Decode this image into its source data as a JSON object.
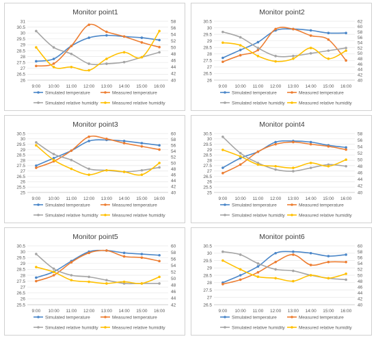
{
  "chart_data": [
    {
      "type": "line",
      "title": "Monitor point1",
      "categories": [
        "9:00",
        "10:00",
        "11:00",
        "12:00",
        "13:00",
        "14:00",
        "15:00",
        "16:00"
      ],
      "y_left_ticks": [
        "26",
        "26.5",
        "27",
        "27.5",
        "28",
        "28.5",
        "29",
        "29.5",
        "30",
        "30.5",
        "31"
      ],
      "y_right_ticks": [
        "40",
        "42",
        "44",
        "46",
        "48",
        "50",
        "52",
        "54",
        "56",
        "58"
      ],
      "ylim_left": [
        26,
        31
      ],
      "ylim_right": [
        40,
        58
      ],
      "series": [
        {
          "name": "Simulated temperature",
          "axis": "left",
          "color": "#4a86c8",
          "values": [
            27.6,
            27.8,
            28.9,
            29.6,
            29.8,
            29.7,
            29.6,
            29.4
          ]
        },
        {
          "name": "Measured temperature",
          "axis": "left",
          "color": "#ed7d31",
          "values": [
            27.2,
            27.4,
            28.9,
            30.7,
            30.1,
            29.7,
            29.2,
            28.8
          ]
        },
        {
          "name": "Simulated relative humidity",
          "axis": "right",
          "color": "#a5a5a5",
          "values": [
            55,
            50,
            48,
            45,
            45,
            45.5,
            47,
            48.5
          ]
        },
        {
          "name": "Measured relative humidity",
          "axis": "right",
          "color": "#ffc000",
          "values": [
            50,
            44,
            44,
            43,
            46.5,
            48.5,
            47,
            55
          ]
        }
      ]
    },
    {
      "type": "line",
      "title": "Monitor point2",
      "categories": [
        "9:00",
        "10:00",
        "11:00",
        "12:00",
        "13:00",
        "14:00",
        "15:00",
        "16:00"
      ],
      "y_left_ticks": [
        "26",
        "26.5",
        "27",
        "27.5",
        "28",
        "28.5",
        "29",
        "29.5",
        "30",
        "30.5"
      ],
      "y_right_ticks": [
        "40",
        "42",
        "44",
        "46",
        "48",
        "50",
        "52",
        "54",
        "56",
        "58",
        "60",
        "62"
      ],
      "ylim_left": [
        26,
        30.5
      ],
      "ylim_right": [
        40,
        62
      ],
      "series": [
        {
          "name": "Simulated temperature",
          "axis": "left",
          "color": "#4a86c8",
          "values": [
            27.7,
            28.3,
            28.9,
            29.8,
            29.9,
            29.8,
            29.6,
            29.6
          ]
        },
        {
          "name": "Measured temperature",
          "axis": "left",
          "color": "#ed7d31",
          "values": [
            27.4,
            27.9,
            28.3,
            29.9,
            29.9,
            29.4,
            29.1,
            27.5
          ]
        },
        {
          "name": "Simulated relative humidity",
          "axis": "right",
          "color": "#a5a5a5",
          "values": [
            58,
            56,
            52,
            49,
            49,
            50,
            51,
            52
          ]
        },
        {
          "name": "Measured relative humidity",
          "axis": "right",
          "color": "#ffc000",
          "values": [
            54,
            53,
            49,
            47,
            48,
            52,
            48,
            51
          ]
        }
      ]
    },
    {
      "type": "line",
      "title": "Monitor point3",
      "categories": [
        "9:00",
        "10:00",
        "11:00",
        "12:00",
        "13:00",
        "14:00",
        "15:00",
        "16:00"
      ],
      "y_left_ticks": [
        "25",
        "25.5",
        "26",
        "26.5",
        "27",
        "27.5",
        "28",
        "28.5",
        "29",
        "29.5",
        "30",
        "30.5"
      ],
      "y_right_ticks": [
        "40",
        "42",
        "44",
        "46",
        "48",
        "50",
        "52",
        "54",
        "56",
        "58",
        "60"
      ],
      "ylim_left": [
        25,
        30.5
      ],
      "ylim_right": [
        40,
        60
      ],
      "series": [
        {
          "name": "Simulated temperature",
          "axis": "left",
          "color": "#4a86c8",
          "values": [
            27.5,
            28.2,
            28.9,
            29.8,
            29.9,
            29.8,
            29.6,
            29.4
          ]
        },
        {
          "name": "Measured temperature",
          "axis": "left",
          "color": "#ed7d31",
          "values": [
            27.3,
            27.9,
            28.9,
            30.2,
            30.0,
            29.6,
            29.3,
            29.0
          ]
        },
        {
          "name": "Simulated relative humidity",
          "axis": "right",
          "color": "#a5a5a5",
          "values": [
            57,
            53,
            51,
            48,
            47.5,
            47,
            47.5,
            48.5
          ]
        },
        {
          "name": "Measured relative humidity",
          "axis": "right",
          "color": "#ffc000",
          "values": [
            56,
            51,
            48,
            46,
            47.5,
            47,
            46,
            50
          ]
        }
      ]
    },
    {
      "type": "line",
      "title": "Monitor point4",
      "categories": [
        "9:00",
        "10:00",
        "11:00",
        "12:00",
        "13:00",
        "14:00",
        "15:00",
        "16:00"
      ],
      "y_left_ticks": [
        "25",
        "25.5",
        "26",
        "26.5",
        "27",
        "27.5",
        "28",
        "28.5",
        "29",
        "29.5",
        "30",
        "30.5"
      ],
      "y_right_ticks": [
        "40",
        "42",
        "44",
        "46",
        "48",
        "50",
        "52",
        "54",
        "56",
        "58"
      ],
      "ylim_left": [
        25,
        30.5
      ],
      "ylim_right": [
        40,
        58
      ],
      "series": [
        {
          "name": "Simulated temperature",
          "axis": "left",
          "color": "#4a86c8",
          "values": [
            27.3,
            28.2,
            28.8,
            29.7,
            29.8,
            29.7,
            29.4,
            29.2
          ]
        },
        {
          "name": "Measured temperature",
          "axis": "left",
          "color": "#ed7d31",
          "values": [
            26.8,
            27.6,
            28.8,
            29.5,
            29.7,
            29.5,
            29.3,
            29.0
          ]
        },
        {
          "name": "Simulated relative humidity",
          "axis": "right",
          "color": "#a5a5a5",
          "values": [
            57,
            52,
            49,
            47,
            46.5,
            47.5,
            48.5,
            48
          ]
        },
        {
          "name": "Measured relative humidity",
          "axis": "right",
          "color": "#ffc000",
          "values": [
            53,
            51,
            48.5,
            48,
            47.5,
            49,
            48,
            50
          ]
        }
      ]
    },
    {
      "type": "line",
      "title": "Monitor point5",
      "categories": [
        "9:00",
        "10:00",
        "11:00",
        "12:00",
        "13:00",
        "14:00",
        "15:00",
        "16:00"
      ],
      "y_left_ticks": [
        "25.5",
        "26",
        "26.5",
        "27",
        "27.5",
        "28",
        "28.5",
        "29",
        "29.5",
        "30",
        "30.5"
      ],
      "y_right_ticks": [
        "42",
        "44",
        "46",
        "48",
        "50",
        "52",
        "54",
        "56",
        "58",
        "60"
      ],
      "ylim_left": [
        25.5,
        30.5
      ],
      "ylim_right": [
        42,
        60
      ],
      "series": [
        {
          "name": "Simulated temperature",
          "axis": "left",
          "color": "#4a86c8",
          "values": [
            27.8,
            28.3,
            29.2,
            30.0,
            30.1,
            29.9,
            29.8,
            29.7
          ]
        },
        {
          "name": "Measured temperature",
          "axis": "left",
          "color": "#ed7d31",
          "values": [
            27.5,
            28.0,
            29.1,
            29.9,
            30.1,
            29.6,
            29.5,
            29.2
          ]
        },
        {
          "name": "Simulated relative humidity",
          "axis": "right",
          "color": "#a5a5a5",
          "values": [
            57.5,
            53,
            51,
            50.5,
            49.5,
            48.5,
            48.5,
            48.5
          ]
        },
        {
          "name": "Measured relative humidity",
          "axis": "right",
          "color": "#ffc000",
          "values": [
            53.5,
            52,
            49.5,
            49,
            48.5,
            49,
            48.5,
            50.5
          ]
        }
      ]
    },
    {
      "type": "line",
      "title": "Monitor point6",
      "categories": [
        "9:00",
        "10:00",
        "11:00",
        "12:00",
        "13:00",
        "14:00",
        "15:00",
        "16:00"
      ],
      "y_left_ticks": [
        "26.5",
        "27",
        "27.5",
        "28",
        "28.5",
        "29",
        "29.5",
        "30",
        "30.5"
      ],
      "y_right_ticks": [
        "40",
        "42",
        "44",
        "46",
        "48",
        "50",
        "52",
        "54",
        "56",
        "58",
        "60"
      ],
      "ylim_left": [
        26.5,
        30.5
      ],
      "ylim_right": [
        40,
        60
      ],
      "series": [
        {
          "name": "Simulated temperature",
          "axis": "left",
          "color": "#4a86c8",
          "values": [
            28.0,
            28.5,
            29.1,
            30.0,
            30.1,
            30.0,
            29.8,
            29.9
          ]
        },
        {
          "name": "Measured temperature",
          "axis": "left",
          "color": "#ed7d31",
          "values": [
            27.9,
            28.2,
            28.7,
            29.4,
            29.9,
            29.2,
            29.4,
            29.4
          ]
        },
        {
          "name": "Simulated relative humidity",
          "axis": "right",
          "color": "#a5a5a5",
          "values": [
            58,
            57,
            54,
            52,
            51.5,
            50,
            49,
            48.5
          ]
        },
        {
          "name": "Measured relative humidity",
          "axis": "right",
          "color": "#ffc000",
          "values": [
            55,
            52,
            49.5,
            49,
            48,
            50,
            49,
            50.5
          ]
        }
      ]
    }
  ]
}
